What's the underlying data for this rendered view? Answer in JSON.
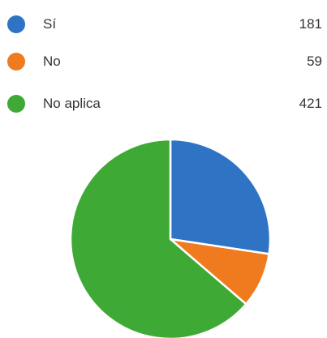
{
  "chart_data": {
    "type": "pie",
    "title": "",
    "legend_position": "top",
    "categories": [
      "Sí",
      "No",
      "No aplica"
    ],
    "values": [
      181,
      59,
      421
    ],
    "colors": [
      "#2F74C4",
      "#F07B1E",
      "#3FA935"
    ]
  }
}
